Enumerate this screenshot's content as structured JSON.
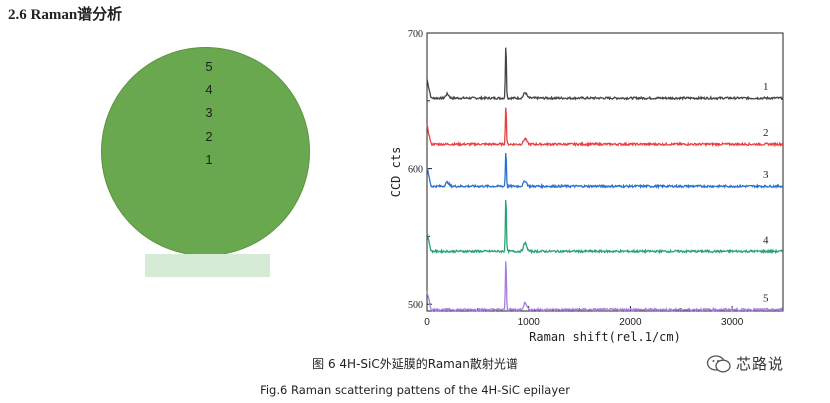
{
  "section_title": "2.6 Raman谱分析",
  "wafer": {
    "points": [
      "5",
      "4",
      "3",
      "2",
      "1"
    ]
  },
  "chart_data": {
    "type": "line",
    "title": "",
    "xlabel": "Raman shift(rel.1/cm)",
    "ylabel": "CCD cts",
    "xlim": [
      0,
      3500
    ],
    "ylim": [
      495,
      700
    ],
    "xticks": [
      0,
      1000,
      2000,
      3000
    ],
    "yticks": [
      500,
      600,
      700
    ],
    "grid": false,
    "colors": [
      "#444444",
      "#e8413f",
      "#2b6fd0",
      "#2aa372",
      "#a77ee0"
    ],
    "series": [
      {
        "name": "1",
        "baseline": 652,
        "peaks": [
          {
            "x": 776,
            "height": 41
          },
          {
            "x": 965,
            "height": 4
          },
          {
            "x": 200,
            "height": 3
          }
        ]
      },
      {
        "name": "2",
        "baseline": 618,
        "peaks": [
          {
            "x": 776,
            "height": 30
          },
          {
            "x": 965,
            "height": 4
          }
        ]
      },
      {
        "name": "3",
        "baseline": 587,
        "peaks": [
          {
            "x": 776,
            "height": 27
          },
          {
            "x": 965,
            "height": 4
          },
          {
            "x": 200,
            "height": 3
          }
        ]
      },
      {
        "name": "4",
        "baseline": 539,
        "peaks": [
          {
            "x": 776,
            "height": 42
          },
          {
            "x": 965,
            "height": 6
          }
        ]
      },
      {
        "name": "5",
        "baseline": 496,
        "peaks": [
          {
            "x": 776,
            "height": 39
          },
          {
            "x": 965,
            "height": 5
          }
        ]
      }
    ]
  },
  "caption_cn": "图 6 4H-SiC外延膜的Raman散射光谱",
  "caption_en": "Fig.6 Raman scattering pattens of the 4H-SiC epilayer",
  "watermark": "芯路说"
}
